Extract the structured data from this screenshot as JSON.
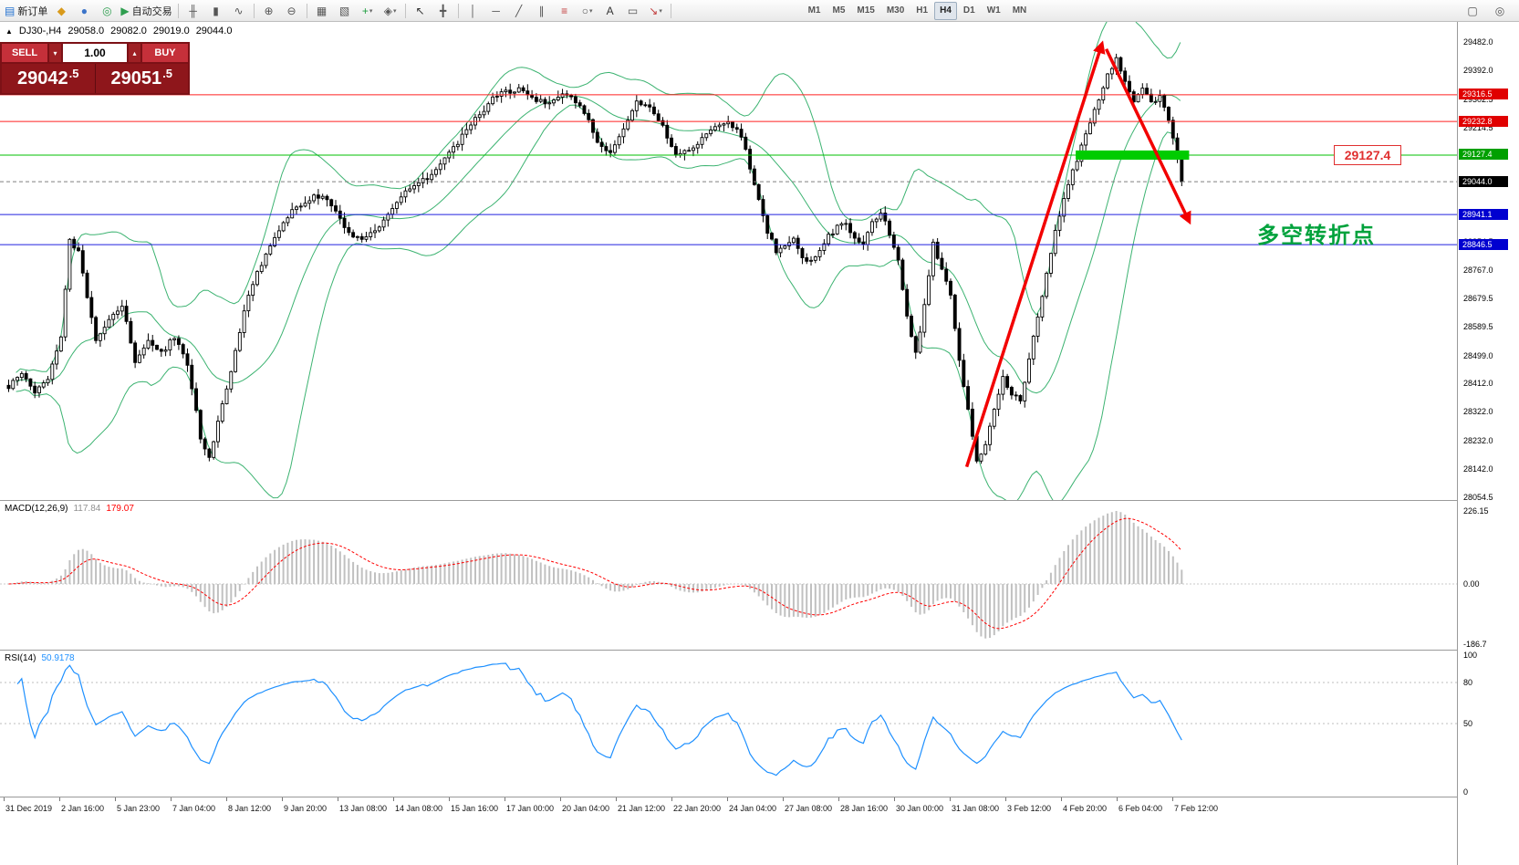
{
  "icons": {
    "symbol_marker": "▲",
    "caret_up": "▴",
    "caret_down": "▾"
  },
  "toolbar": {
    "items": [
      {
        "type": "labeled",
        "name": "new-order",
        "glyph": "▤",
        "glyph_color": "#1f6fd0",
        "label": "新订单"
      },
      {
        "type": "icon",
        "name": "chart-screenshot",
        "glyph": "◆",
        "glyph_color": "#d99a1b"
      },
      {
        "type": "icon",
        "name": "profile",
        "glyph": "●",
        "glyph_color": "#3b74c9"
      },
      {
        "type": "icon",
        "name": "community",
        "glyph": "◎",
        "glyph_color": "#2e9e4f"
      },
      {
        "type": "labeled",
        "name": "autotrading",
        "glyph": "▶",
        "glyph_color": "#2e9e4f",
        "label": "自动交易"
      },
      {
        "type": "sep"
      },
      {
        "type": "icon",
        "name": "bar-chart-mode",
        "glyph": "╫",
        "glyph_color": "#555555"
      },
      {
        "type": "icon",
        "name": "candlestick-mode",
        "glyph": "▮",
        "glyph_color": "#555555"
      },
      {
        "type": "icon",
        "name": "line-chart-mode",
        "glyph": "∿",
        "glyph_color": "#555555"
      },
      {
        "type": "sep"
      },
      {
        "type": "icon",
        "name": "zoom-in",
        "glyph": "⊕",
        "glyph_color": "#555555"
      },
      {
        "type": "icon",
        "name": "zoom-out",
        "glyph": "⊖",
        "glyph_color": "#555555"
      },
      {
        "type": "sep"
      },
      {
        "type": "icon",
        "name": "tile-windows",
        "glyph": "▦",
        "glyph_color": "#555555"
      },
      {
        "type": "icon",
        "name": "arrange-windows",
        "glyph": "▧",
        "glyph_color": "#555555"
      },
      {
        "type": "icon",
        "name": "indicators-add",
        "glyph": "+",
        "glyph_color": "#1f9e40",
        "caret": true
      },
      {
        "type": "icon",
        "name": "objects-list",
        "glyph": "◈",
        "glyph_color": "#555555",
        "caret": true
      },
      {
        "type": "sep"
      },
      {
        "type": "icon",
        "name": "cursor-tool",
        "glyph": "↖",
        "glyph_color": "#333333"
      },
      {
        "type": "icon",
        "name": "crosshair-tool",
        "glyph": "╋",
        "glyph_color": "#555555"
      },
      {
        "type": "sep"
      },
      {
        "type": "icon",
        "name": "vertical-line-tool",
        "glyph": "│",
        "glyph_color": "#555555"
      },
      {
        "type": "icon",
        "name": "horizontal-line-tool",
        "glyph": "─",
        "glyph_color": "#555555"
      },
      {
        "type": "icon",
        "name": "trendline-tool",
        "glyph": "╱",
        "glyph_color": "#555555"
      },
      {
        "type": "icon",
        "name": "channel-tool",
        "glyph": "∥",
        "glyph_color": "#555555"
      },
      {
        "type": "icon",
        "name": "fibonacci-tool",
        "glyph": "≡",
        "glyph_color": "#c23b3b"
      },
      {
        "type": "icon",
        "name": "shapes-tool",
        "glyph": "○",
        "glyph_color": "#555555",
        "caret": true
      },
      {
        "type": "icon",
        "name": "text-tool",
        "glyph": "A",
        "glyph_color": "#333333"
      },
      {
        "type": "icon",
        "name": "label-tool",
        "glyph": "▭",
        "glyph_color": "#555555"
      },
      {
        "type": "icon",
        "name": "arrow-objects",
        "glyph": "↘",
        "glyph_color": "#c23b3b",
        "caret": true
      },
      {
        "type": "sep"
      }
    ],
    "timeframes": {
      "items": [
        "M1",
        "M5",
        "M15",
        "M30",
        "H1",
        "H4",
        "D1",
        "W1",
        "MN"
      ],
      "active": "H4"
    },
    "right_items": [
      {
        "name": "window",
        "glyph": "▢",
        "glyph_color": "#555555"
      },
      {
        "name": "search",
        "glyph": "◎",
        "glyph_color": "#555555"
      }
    ]
  },
  "chart_header": {
    "symbol": "DJ30-,H4",
    "open": "29058.0",
    "high": "29082.0",
    "low": "29019.0",
    "close": "29044.0"
  },
  "quote_panel": {
    "sell_label": "SELL",
    "buy_label": "BUY",
    "volume": "1.00",
    "sell_price_main": "29042",
    "sell_price_frac": ".5",
    "buy_price_main": "29051",
    "buy_price_frac": ".5"
  },
  "annotations": {
    "price_label": "29127.4",
    "cn_note": "多空转折点"
  },
  "chart_data": {
    "type": "candlestick",
    "title": "DJ30- H4",
    "price_range": {
      "max": 29482.0,
      "min": 28054.5
    },
    "axis_ticks": [
      29482.0,
      29392.0,
      29302.5,
      29214.5,
      29124.5,
      29034.5,
      28944.5,
      28854.5,
      28767.0,
      28679.5,
      28589.5,
      28499.0,
      28412.0,
      28322.0,
      28232.0,
      28142.0,
      28054.5
    ],
    "price_lines": [
      {
        "value": 29316.5,
        "color": "#ff2020",
        "badge": "#e00000"
      },
      {
        "value": 29232.8,
        "color": "#ff2020",
        "badge": "#e00000"
      },
      {
        "value": 29127.4,
        "color": "#00c000",
        "badge": "#00a000"
      },
      {
        "value": 29044.0,
        "color": "#808080",
        "style": "dashed",
        "badge": "#000000"
      },
      {
        "value": 28941.1,
        "color": "#2020df",
        "badge": "#0000d0"
      },
      {
        "value": 28846.5,
        "color": "#2020df",
        "badge": "#0000d0"
      }
    ],
    "candle_count": 270,
    "noise_amp": 8,
    "close_path": [
      [
        0,
        28400
      ],
      [
        3,
        28445
      ],
      [
        6,
        28385
      ],
      [
        9,
        28430
      ],
      [
        12,
        28560
      ],
      [
        14,
        28860
      ],
      [
        16,
        28820
      ],
      [
        18,
        28680
      ],
      [
        20,
        28545
      ],
      [
        23,
        28610
      ],
      [
        26,
        28655
      ],
      [
        29,
        28485
      ],
      [
        32,
        28545
      ],
      [
        35,
        28505
      ],
      [
        38,
        28560
      ],
      [
        41,
        28470
      ],
      [
        44,
        28245
      ],
      [
        46,
        28175
      ],
      [
        48,
        28290
      ],
      [
        51,
        28450
      ],
      [
        54,
        28640
      ],
      [
        57,
        28760
      ],
      [
        60,
        28845
      ],
      [
        63,
        28920
      ],
      [
        66,
        28965
      ],
      [
        69,
        28990
      ],
      [
        72,
        29005
      ],
      [
        75,
        28945
      ],
      [
        78,
        28885
      ],
      [
        81,
        28862
      ],
      [
        84,
        28890
      ],
      [
        87,
        28945
      ],
      [
        90,
        29000
      ],
      [
        93,
        29030
      ],
      [
        96,
        29055
      ],
      [
        99,
        29105
      ],
      [
        102,
        29150
      ],
      [
        105,
        29205
      ],
      [
        108,
        29255
      ],
      [
        111,
        29305
      ],
      [
        114,
        29325
      ],
      [
        117,
        29335
      ],
      [
        120,
        29312
      ],
      [
        123,
        29285
      ],
      [
        126,
        29310
      ],
      [
        129,
        29318
      ],
      [
        132,
        29260
      ],
      [
        135,
        29175
      ],
      [
        138,
        29130
      ],
      [
        141,
        29215
      ],
      [
        144,
        29290
      ],
      [
        147,
        29285
      ],
      [
        150,
        29215
      ],
      [
        153,
        29125
      ],
      [
        156,
        29140
      ],
      [
        159,
        29180
      ],
      [
        162,
        29210
      ],
      [
        165,
        29228
      ],
      [
        168,
        29190
      ],
      [
        170,
        29090
      ],
      [
        172,
        28985
      ],
      [
        174,
        28890
      ],
      [
        176,
        28825
      ],
      [
        178,
        28838
      ],
      [
        180,
        28862
      ],
      [
        182,
        28812
      ],
      [
        184,
        28790
      ],
      [
        186,
        28835
      ],
      [
        188,
        28872
      ],
      [
        190,
        28900
      ],
      [
        192,
        28912
      ],
      [
        194,
        28872
      ],
      [
        196,
        28852
      ],
      [
        198,
        28918
      ],
      [
        200,
        28948
      ],
      [
        202,
        28882
      ],
      [
        204,
        28792
      ],
      [
        206,
        28622
      ],
      [
        208,
        28505
      ],
      [
        210,
        28652
      ],
      [
        212,
        28848
      ],
      [
        214,
        28772
      ],
      [
        216,
        28692
      ],
      [
        218,
        28482
      ],
      [
        220,
        28332
      ],
      [
        222,
        28162
      ],
      [
        224,
        28222
      ],
      [
        226,
        28332
      ],
      [
        228,
        28432
      ],
      [
        230,
        28382
      ],
      [
        232,
        28352
      ],
      [
        234,
        28492
      ],
      [
        237,
        28692
      ],
      [
        240,
        28892
      ],
      [
        243,
        29042
      ],
      [
        246,
        29152
      ],
      [
        249,
        29272
      ],
      [
        252,
        29378
      ],
      [
        254,
        29432
      ],
      [
        256,
        29362
      ],
      [
        258,
        29302
      ],
      [
        260,
        29332
      ],
      [
        262,
        29292
      ],
      [
        264,
        29312
      ],
      [
        266,
        29242
      ],
      [
        268,
        29122
      ],
      [
        269,
        29044
      ]
    ],
    "bollinger": {
      "period": 20,
      "deviation": 2,
      "color": "#3cb371"
    },
    "green_zone": {
      "from_candle": 245,
      "to_candle": 271,
      "price_top": 29142,
      "price_bottom": 29113,
      "color": "#00cc00"
    },
    "trend_arrows": {
      "color": "#f20000",
      "up": {
        "x1_candle": 220,
        "p1": 28150,
        "x2_candle": 251,
        "p2": 29475
      },
      "down": {
        "x1_candle": 252,
        "p1": 29460,
        "x2_candle": 271,
        "p2": 28920
      }
    },
    "indicators": {
      "macd": {
        "label": "MACD(12,26,9)",
        "value_main": "117.84",
        "value_signal": "179.07",
        "axis_labels": [
          "226.15",
          "0.00",
          "-186.7"
        ],
        "axis_values": [
          226.15,
          0,
          -186.7
        ],
        "hist_color": "#c0c0c0",
        "signal_color": "#ff0000",
        "value_main_color": "#909090"
      },
      "rsi": {
        "label": "RSI(14)",
        "value": "50.9178",
        "axis_labels": [
          "100",
          "80",
          "50",
          "0"
        ],
        "axis_values": [
          100,
          80,
          50,
          0
        ],
        "levels": [
          80,
          50
        ],
        "color": "#1e90ff"
      }
    },
    "time_labels": [
      "31 Dec 2019",
      "2 Jan 16:00",
      "5 Jan 23:00",
      "7 Jan 04:00",
      "8 Jan 12:00",
      "9 Jan 20:00",
      "13 Jan 08:00",
      "14 Jan 08:00",
      "15 Jan 16:00",
      "17 Jan 00:00",
      "20 Jan 04:00",
      "21 Jan 12:00",
      "22 Jan 20:00",
      "24 Jan 04:00",
      "27 Jan 08:00",
      "28 Jan 16:00",
      "30 Jan 00:00",
      "31 Jan 08:00",
      "3 Feb 12:00",
      "4 Feb 20:00",
      "6 Feb 04:00",
      "7 Feb 12:00"
    ]
  }
}
